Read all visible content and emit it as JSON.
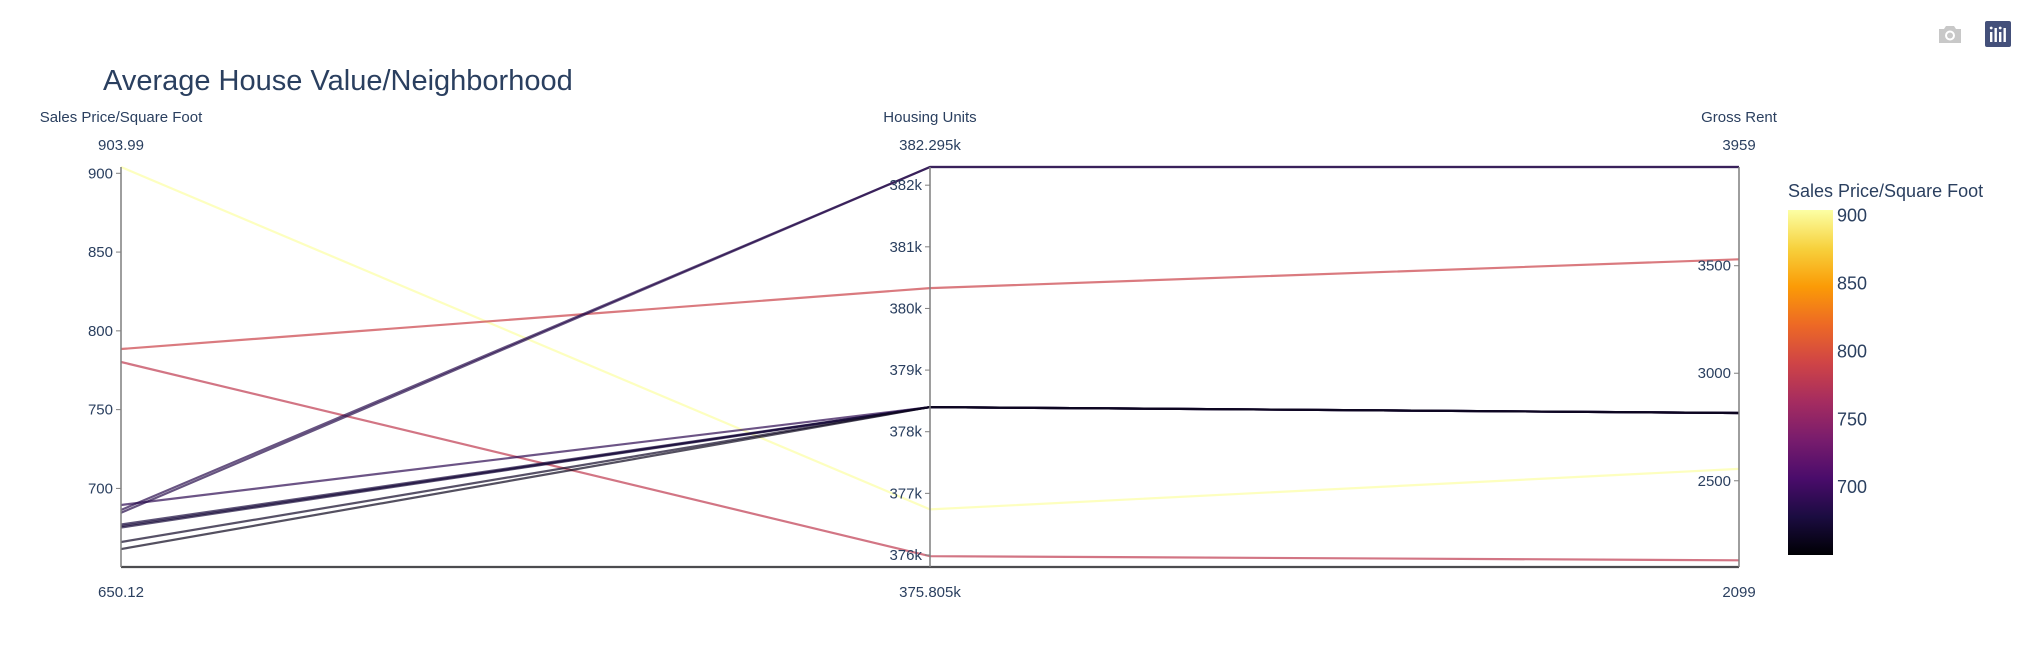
{
  "modebar": {
    "camera_icon": "camera-icon",
    "plotly_icon": "plotly-logo-icon",
    "camera_color": "#c8c8c8",
    "plotly_color": "#44507a"
  },
  "chart_data": {
    "type": "parallel_coordinates",
    "title": "Average House Value/Neighborhood",
    "dimensions": [
      {
        "label": "Sales Price/Square Foot",
        "range_max": "903.99",
        "range_min": "650.12",
        "min": 650.12,
        "max": 903.99,
        "ticks": [
          700,
          750,
          800,
          850,
          900
        ],
        "tick_labels": [
          "700",
          "750",
          "800",
          "850",
          "900"
        ]
      },
      {
        "label": "Housing Units",
        "range_max": "382.295k",
        "range_min": "375.805k",
        "min": 375805,
        "max": 382295,
        "ticks": [
          376000,
          377000,
          378000,
          379000,
          380000,
          381000,
          382000
        ],
        "tick_labels": [
          "376k",
          "377k",
          "378k",
          "379k",
          "380k",
          "381k",
          "382k"
        ]
      },
      {
        "label": "Gross Rent",
        "range_max": "3959",
        "range_min": "2099",
        "min": 2099,
        "max": 3959,
        "ticks": [
          2500,
          3000,
          3500
        ],
        "tick_labels": [
          "2500",
          "3000",
          "3500"
        ]
      }
    ],
    "lines": [
      [
        903.99,
        376740,
        2555
      ],
      [
        788.5,
        380330,
        3530
      ],
      [
        780.2,
        375980,
        2130
      ],
      [
        689.5,
        378400,
        2815
      ],
      [
        686.3,
        382295,
        3959
      ],
      [
        684.5,
        382295,
        3959
      ],
      [
        677.1,
        378400,
        2815
      ],
      [
        676.0,
        378400,
        2815
      ],
      [
        675.2,
        378400,
        2815
      ],
      [
        666.0,
        378400,
        2815
      ],
      [
        661.5,
        378400,
        2815
      ],
      [
        650.12,
        375805,
        2099
      ]
    ],
    "colorscale": [
      "#0d0887",
      "#000004"
    ],
    "colorscale_stops": [
      [
        0.0,
        "#000004"
      ],
      [
        0.111,
        "#1b0c41"
      ],
      [
        0.222,
        "#4a0c6b"
      ],
      [
        0.333,
        "#781c6d"
      ],
      [
        0.444,
        "#a52c60"
      ],
      [
        0.556,
        "#cf4446"
      ],
      [
        0.667,
        "#ed6925"
      ],
      [
        0.778,
        "#fb9b06"
      ],
      [
        0.889,
        "#f7d13d"
      ],
      [
        1.0,
        "#fcffa4"
      ]
    ],
    "colorbar": {
      "title": "Sales Price/Square Foot",
      "ticks": [
        700,
        750,
        800,
        850,
        900
      ],
      "tick_labels": [
        "700",
        "750",
        "800",
        "850",
        "900"
      ]
    }
  }
}
